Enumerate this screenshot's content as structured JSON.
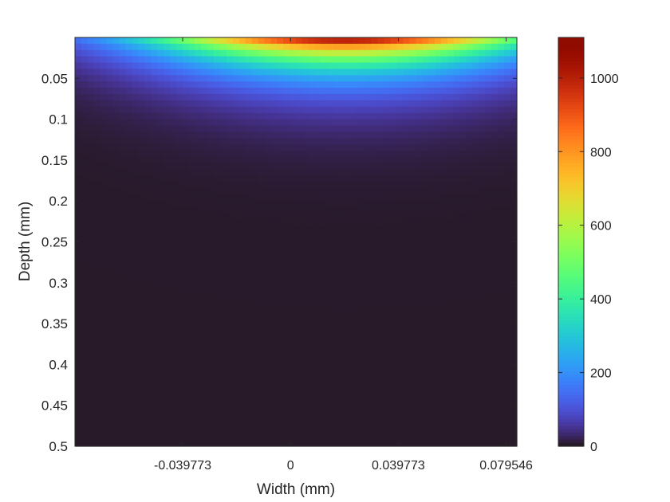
{
  "chart_data": {
    "type": "heatmap",
    "title": "",
    "xlabel": "Width (mm)",
    "ylabel": "Depth (mm)",
    "x_ticks": [
      {
        "value": -0.039773,
        "label": "-0.039773"
      },
      {
        "value": 0,
        "label": "0"
      },
      {
        "value": 0.039773,
        "label": "0.039773"
      },
      {
        "value": 0.079546,
        "label": "0.079546"
      }
    ],
    "y_ticks": [
      {
        "value": 0.05,
        "label": "0.05"
      },
      {
        "value": 0.1,
        "label": "0.1"
      },
      {
        "value": 0.15,
        "label": "0.15"
      },
      {
        "value": 0.2,
        "label": "0.2"
      },
      {
        "value": 0.25,
        "label": "0.25"
      },
      {
        "value": 0.3,
        "label": "0.3"
      },
      {
        "value": 0.35,
        "label": "0.35"
      },
      {
        "value": 0.4,
        "label": "0.4"
      },
      {
        "value": 0.45,
        "label": "0.45"
      },
      {
        "value": 0.5,
        "label": "0.5"
      }
    ],
    "xlim": [
      -0.0795,
      0.0835
    ],
    "ylim": [
      0,
      0.5
    ],
    "y_reversed": true,
    "colorbar": {
      "ticks": [
        {
          "value": 0,
          "label": "0"
        },
        {
          "value": 200,
          "label": "200"
        },
        {
          "value": 400,
          "label": "400"
        },
        {
          "value": 600,
          "label": "600"
        },
        {
          "value": 800,
          "label": "800"
        },
        {
          "value": 1000,
          "label": "1000"
        }
      ],
      "range": [
        0,
        1110
      ]
    },
    "colormap": "turbo",
    "field": {
      "peak_value": 1110,
      "peak_x": 0.02,
      "lateral_sigma": 0.05,
      "depth_decay": 0.032,
      "background_value": 5
    }
  }
}
